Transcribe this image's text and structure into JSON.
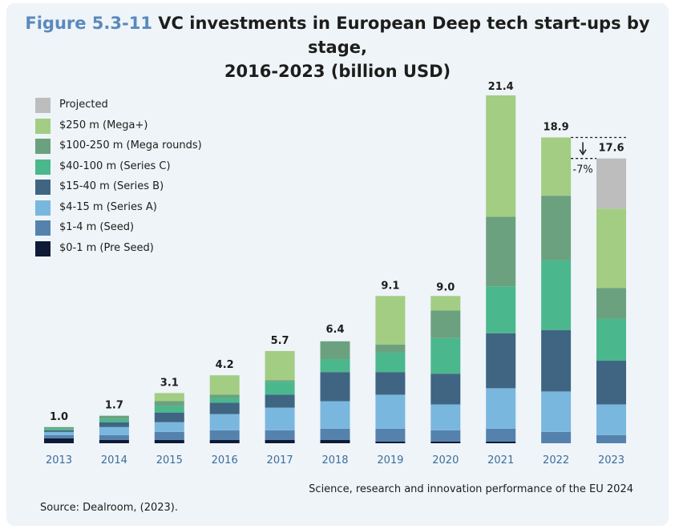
{
  "title": {
    "figure_number": "Figure 5.3-11",
    "line1": "VC investments in European Deep tech start-ups by stage,",
    "line2": "2016-2023 (billion USD)"
  },
  "legend": [
    {
      "name": "Projected",
      "color": "#bdbdbd"
    },
    {
      "name": "$250 m (Mega+)",
      "color": "#a2cd83"
    },
    {
      "name": "$100-250 m (Mega rounds)",
      "color": "#6ca17f"
    },
    {
      "name": "$40-100 m (Series C)",
      "color": "#4bb78d"
    },
    {
      "name": "$15-40 m (Series B)",
      "color": "#3f6583"
    },
    {
      "name": "$4-15 m (Series A)",
      "color": "#7ab7de"
    },
    {
      "name": "$1-4 m (Seed)",
      "color": "#5582ad"
    },
    {
      "name": "$0-1 m (Pre Seed)",
      "color": "#0f1a36"
    }
  ],
  "chart_data": {
    "type": "bar",
    "stacked": true,
    "title": "VC investments in European Deep tech start-ups by stage, 2016-2023 (billion USD)",
    "categories": [
      "2013",
      "2014",
      "2015",
      "2016",
      "2017",
      "2018",
      "2019",
      "2020",
      "2021",
      "2022",
      "2023"
    ],
    "series": [
      {
        "name": "$0-1 m (Pre Seed)",
        "color": "#0f1a36",
        "values": [
          0.3,
          0.2,
          0.2,
          0.2,
          0.2,
          0.2,
          0.1,
          0.1,
          0.1,
          0.0,
          0.0
        ]
      },
      {
        "name": "$1-4 m (Seed)",
        "color": "#5582ad",
        "values": [
          0.2,
          0.3,
          0.5,
          0.6,
          0.6,
          0.7,
          0.8,
          0.7,
          0.8,
          0.7,
          0.5
        ]
      },
      {
        "name": "$4-15 m (Series A)",
        "color": "#7ab7de",
        "values": [
          0.2,
          0.5,
          0.6,
          1.0,
          1.4,
          1.7,
          2.1,
          1.6,
          2.5,
          2.5,
          1.9
        ]
      },
      {
        "name": "$15-40 m (Series B)",
        "color": "#3f6583",
        "values": [
          0.1,
          0.3,
          0.6,
          0.7,
          0.8,
          1.8,
          1.4,
          1.9,
          3.4,
          3.8,
          2.7
        ]
      },
      {
        "name": "$40-100 m (Series C)",
        "color": "#4bb78d",
        "values": [
          0.1,
          0.2,
          0.4,
          0.3,
          0.8,
          0.8,
          1.2,
          2.2,
          2.9,
          4.3,
          2.6
        ]
      },
      {
        "name": "$100-250 m (Mega rounds)",
        "color": "#6ca17f",
        "values": [
          0.1,
          0.2,
          0.3,
          0.2,
          0.1,
          1.1,
          0.5,
          1.7,
          4.3,
          4.0,
          1.9
        ]
      },
      {
        "name": "$250 m (Mega+)",
        "color": "#a2cd83",
        "values": [
          0.0,
          0.0,
          0.5,
          1.2,
          1.8,
          0.0,
          3.0,
          0.9,
          7.5,
          3.6,
          4.9
        ]
      },
      {
        "name": "Projected",
        "color": "#bdbdbd",
        "values": [
          0,
          0,
          0,
          0,
          0,
          0,
          0,
          0,
          0,
          0,
          3.1
        ]
      }
    ],
    "totals": [
      1.0,
      1.7,
      3.1,
      4.2,
      5.7,
      6.4,
      9.1,
      9.0,
      21.4,
      18.9,
      17.6
    ],
    "total_labels": [
      "1.0",
      "1.7",
      "3.1",
      "4.2",
      "5.7",
      "6.4",
      "9.1",
      "9.0",
      "21.4",
      "18.9",
      "17.6"
    ],
    "annotation": {
      "text": "-7%",
      "from_category": "2022",
      "to_category": "2023"
    },
    "ylim": [
      0,
      21.4
    ],
    "xlabel": "",
    "ylabel": ""
  },
  "footer": {
    "publication": "Science, research and innovation performance of the EU 2024",
    "source": "Source: Dealroom, (2023)."
  }
}
